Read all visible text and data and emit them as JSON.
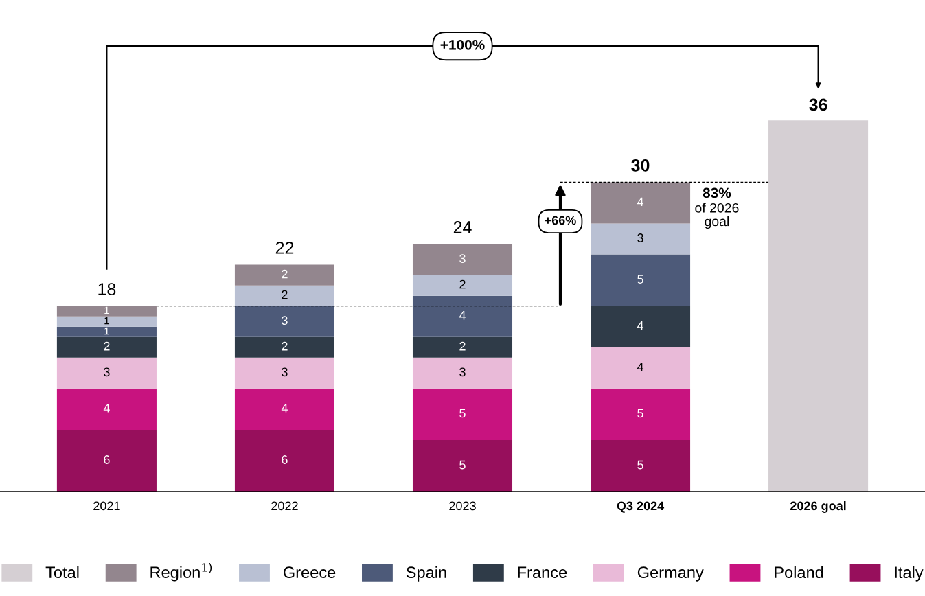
{
  "chart_data": {
    "type": "bar",
    "stacked": true,
    "data_labels": true,
    "legend": "bottom",
    "categories": [
      "2021",
      "2022",
      "2023",
      "Q3 2024",
      "2026 goal"
    ],
    "series": [
      {
        "name": "Italy",
        "color": "#970f5c",
        "values": [
          6,
          6,
          5,
          5,
          null
        ]
      },
      {
        "name": "Poland",
        "color": "#c8137f",
        "values": [
          4,
          4,
          5,
          5,
          null
        ]
      },
      {
        "name": "Germany",
        "color": "#e9bad8",
        "values": [
          3,
          3,
          3,
          4,
          null
        ]
      },
      {
        "name": "France",
        "color": "#2f3b48",
        "values": [
          2,
          2,
          2,
          4,
          null
        ]
      },
      {
        "name": "Spain",
        "color": "#4d5a79",
        "values": [
          1,
          3,
          4,
          5,
          null
        ]
      },
      {
        "name": "Greece",
        "color": "#b9c0d3",
        "values": [
          1,
          2,
          2,
          3,
          null
        ]
      },
      {
        "name": "Region$^{1)}$",
        "color": "#93868e",
        "values": [
          1,
          2,
          3,
          4,
          null
        ]
      },
      {
        "name": "Total",
        "color": "#d5cfd3",
        "values": [
          null,
          null,
          null,
          null,
          36
        ]
      }
    ],
    "totals": [
      "18",
      "22",
      "24",
      "30"
    ],
    "ref_lines": [
      {
        "axis": "y",
        "value": 18,
        "color": "#000000",
        "line_style": "dashed"
      },
      {
        "axis": "y",
        "value": 30,
        "color": "#000000",
        "line_style": "dashed"
      }
    ],
    "annotations": [
      "+100%",
      "+66%",
      "83%",
      "of 2026\ngoal"
    ]
  }
}
